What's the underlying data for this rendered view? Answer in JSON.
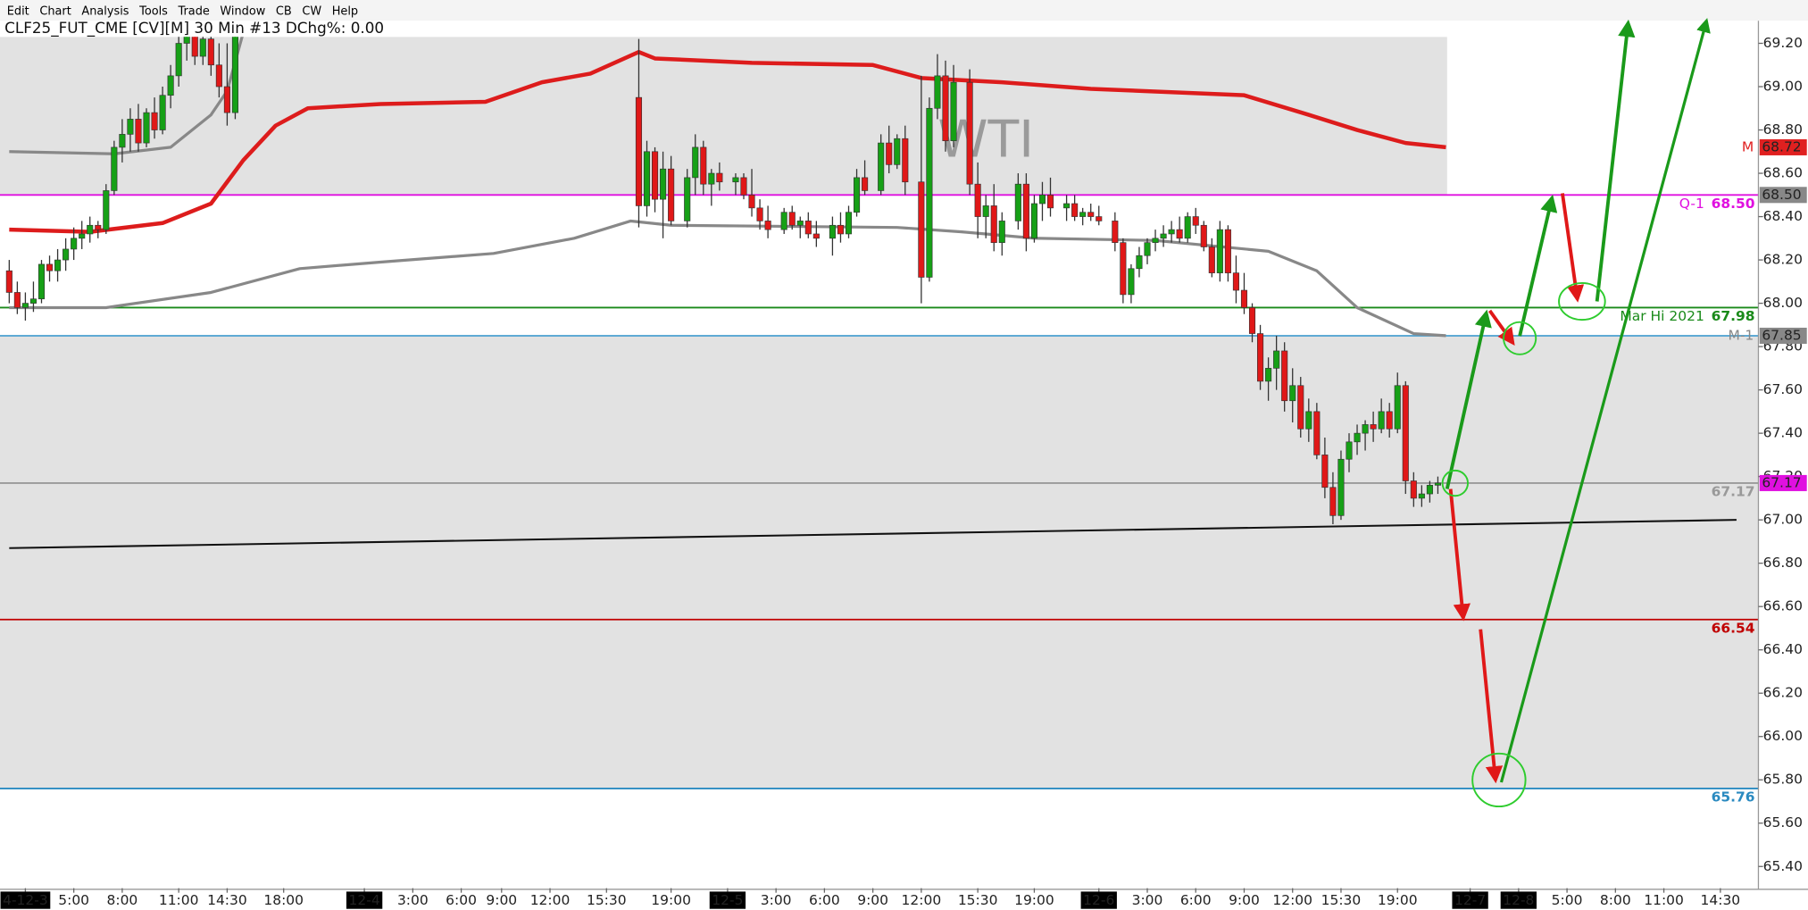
{
  "menu": [
    "Edit",
    "Chart",
    "Analysis",
    "Tools",
    "Trade",
    "Window",
    "CB",
    "CW",
    "Help"
  ],
  "chart_data": {
    "type": "candlestick",
    "title": "CLF25_FUT_CME [CV][M]  30 Min  #13 DChg%: 0.00",
    "watermark": "WTI",
    "up_color": "#16a016",
    "down_color": "#e01818",
    "xlim": [
      0,
      216
    ],
    "ylim": [
      65.3,
      69.23
    ],
    "yticks": [
      {
        "value": 65.4,
        "label": "65.40"
      },
      {
        "value": 65.6,
        "label": "65.60"
      },
      {
        "value": 65.8,
        "label": "65.80"
      },
      {
        "value": 66.0,
        "label": "66.00"
      },
      {
        "value": 66.2,
        "label": "66.20"
      },
      {
        "value": 66.4,
        "label": "66.40"
      },
      {
        "value": 66.6,
        "label": "66.60"
      },
      {
        "value": 66.8,
        "label": "66.80"
      },
      {
        "value": 67.0,
        "label": "67.00"
      },
      {
        "value": 67.2,
        "label": "67.20"
      },
      {
        "value": 67.4,
        "label": "67.40"
      },
      {
        "value": 67.6,
        "label": "67.60"
      },
      {
        "value": 67.8,
        "label": "67.80"
      },
      {
        "value": 68.0,
        "label": "68.00"
      },
      {
        "value": 68.2,
        "label": "68.20"
      },
      {
        "value": 68.4,
        "label": "68.40"
      },
      {
        "value": 68.6,
        "label": "68.60"
      },
      {
        "value": 68.8,
        "label": "68.80"
      },
      {
        "value": 69.0,
        "label": "69.00"
      },
      {
        "value": 69.2,
        "label": "69.20"
      }
    ],
    "xticks": [
      {
        "value": 2,
        "label": "4-12-3",
        "date": true
      },
      {
        "value": 8,
        "label": "5:00"
      },
      {
        "value": 14,
        "label": "8:00"
      },
      {
        "value": 21,
        "label": "11:00"
      },
      {
        "value": 27,
        "label": "14:30"
      },
      {
        "value": 34,
        "label": "18:00"
      },
      {
        "value": 44,
        "label": "12-4",
        "date": true
      },
      {
        "value": 50,
        "label": "3:00"
      },
      {
        "value": 56,
        "label": "6:00"
      },
      {
        "value": 61,
        "label": "9:00"
      },
      {
        "value": 67,
        "label": "12:00"
      },
      {
        "value": 74,
        "label": "15:30"
      },
      {
        "value": 82,
        "label": "19:00"
      },
      {
        "value": 89,
        "label": "12-5",
        "date": true
      },
      {
        "value": 95,
        "label": "3:00"
      },
      {
        "value": 101,
        "label": "6:00"
      },
      {
        "value": 107,
        "label": "9:00"
      },
      {
        "value": 113,
        "label": "12:00"
      },
      {
        "value": 120,
        "label": "15:30"
      },
      {
        "value": 127,
        "label": "19:00"
      },
      {
        "value": 135,
        "label": "12-6",
        "date": true
      },
      {
        "value": 141,
        "label": "3:00"
      },
      {
        "value": 147,
        "label": "6:00"
      },
      {
        "value": 153,
        "label": "9:00"
      },
      {
        "value": 159,
        "label": "12:00"
      },
      {
        "value": 165,
        "label": "15:30"
      },
      {
        "value": 172,
        "label": "19:00"
      },
      {
        "value": 181,
        "label": "12-7",
        "date": true
      },
      {
        "value": 187,
        "label": "12-8",
        "date": true
      },
      {
        "value": 193,
        "label": "5:00"
      },
      {
        "value": 199,
        "label": "8:00"
      },
      {
        "value": 205,
        "label": "11:00"
      },
      {
        "value": 212,
        "label": "14:30"
      }
    ],
    "x": [
      0,
      1,
      2,
      3,
      4,
      5,
      6,
      7,
      8,
      9,
      10,
      11,
      12,
      13,
      14,
      15,
      16,
      17,
      18,
      19,
      20,
      21,
      22,
      23,
      24,
      25,
      26,
      27,
      28,
      78,
      79,
      80,
      81,
      82,
      84,
      85,
      86,
      87,
      88,
      90,
      91,
      92,
      93,
      94,
      96,
      97,
      98,
      99,
      100,
      102,
      103,
      104,
      105,
      106,
      108,
      109,
      110,
      111,
      113,
      114,
      115,
      116,
      117,
      119,
      120,
      121,
      122,
      123,
      125,
      126,
      127,
      128,
      129,
      131,
      132,
      133,
      134,
      135,
      137,
      138,
      139,
      140,
      141,
      142,
      143,
      144,
      145,
      146,
      147,
      148,
      149,
      150,
      151,
      152,
      153,
      154,
      155,
      156,
      157,
      158,
      159,
      160,
      161,
      162,
      163,
      164,
      165,
      166,
      167,
      168,
      169,
      170,
      171,
      172,
      173,
      174,
      175,
      176,
      177
    ],
    "open": [
      68.15,
      68.05,
      67.98,
      68.0,
      68.02,
      68.18,
      68.15,
      68.2,
      68.25,
      68.3,
      68.32,
      68.36,
      68.34,
      68.52,
      68.72,
      68.78,
      68.85,
      68.74,
      68.88,
      68.8,
      68.96,
      69.05,
      69.2,
      69.26,
      69.14,
      69.22,
      69.1,
      69.0,
      68.88,
      68.95,
      68.45,
      68.7,
      68.48,
      68.62,
      68.38,
      68.58,
      68.72,
      68.55,
      68.6,
      68.56,
      68.58,
      68.5,
      68.44,
      68.38,
      68.34,
      68.42,
      68.36,
      68.38,
      68.32,
      68.3,
      68.36,
      68.32,
      68.42,
      68.58,
      68.52,
      68.74,
      68.64,
      68.76,
      68.56,
      68.12,
      68.9,
      69.05,
      68.75,
      69.02,
      68.55,
      68.4,
      68.45,
      68.28,
      68.38,
      68.55,
      68.3,
      68.46,
      68.5,
      68.44,
      68.46,
      68.4,
      68.42,
      68.4,
      68.38,
      68.28,
      68.04,
      68.16,
      68.22,
      68.28,
      68.3,
      68.32,
      68.34,
      68.3,
      68.4,
      68.36,
      68.26,
      68.14,
      68.34,
      68.14,
      68.06,
      67.98,
      67.86,
      67.64,
      67.7,
      67.78,
      67.55,
      67.62,
      67.42,
      67.5,
      67.3,
      67.15,
      67.02,
      67.28,
      67.36,
      67.4,
      67.44,
      67.42,
      67.5,
      67.42,
      67.62,
      67.18,
      67.1,
      67.12,
      67.16
    ],
    "high": [
      68.2,
      68.1,
      68.05,
      68.1,
      68.2,
      68.22,
      68.25,
      68.3,
      68.35,
      68.38,
      68.4,
      68.38,
      68.55,
      68.75,
      68.85,
      68.9,
      68.92,
      68.9,
      68.95,
      69.0,
      69.1,
      69.25,
      69.3,
      69.3,
      69.3,
      69.3,
      69.2,
      69.2,
      69.3,
      69.22,
      68.75,
      68.72,
      68.7,
      68.68,
      68.62,
      68.78,
      68.75,
      68.62,
      68.65,
      68.6,
      68.6,
      68.62,
      68.48,
      68.45,
      68.44,
      68.45,
      68.4,
      68.42,
      68.38,
      68.4,
      68.42,
      68.45,
      68.62,
      68.66,
      68.78,
      68.82,
      68.78,
      68.82,
      69.05,
      68.95,
      69.15,
      69.12,
      69.1,
      69.08,
      68.65,
      68.5,
      68.55,
      68.42,
      68.6,
      68.6,
      68.5,
      68.56,
      68.58,
      68.5,
      68.5,
      68.44,
      68.46,
      68.45,
      68.42,
      68.3,
      68.18,
      68.26,
      68.3,
      68.34,
      68.36,
      68.38,
      68.4,
      68.42,
      68.44,
      68.38,
      68.3,
      68.38,
      68.36,
      68.22,
      68.14,
      68.0,
      67.9,
      67.75,
      67.85,
      67.82,
      67.7,
      67.66,
      67.56,
      67.54,
      67.38,
      67.22,
      67.32,
      67.4,
      67.44,
      67.46,
      67.5,
      67.56,
      67.54,
      67.68,
      67.64,
      67.22,
      67.16,
      67.18,
      67.2
    ],
    "low": [
      68.0,
      67.95,
      67.92,
      67.96,
      68.0,
      68.1,
      68.1,
      68.15,
      68.2,
      68.25,
      68.28,
      68.3,
      68.32,
      68.5,
      68.65,
      68.7,
      68.7,
      68.72,
      68.76,
      68.78,
      68.9,
      69.0,
      69.12,
      69.1,
      69.1,
      69.05,
      68.95,
      68.82,
      68.85,
      68.35,
      68.4,
      68.42,
      68.3,
      68.36,
      68.35,
      68.5,
      68.5,
      68.45,
      68.52,
      68.5,
      68.48,
      68.4,
      68.34,
      68.3,
      68.32,
      68.34,
      68.3,
      68.3,
      68.26,
      68.22,
      68.28,
      68.3,
      68.4,
      68.5,
      68.5,
      68.6,
      68.62,
      68.5,
      68.0,
      68.1,
      68.85,
      68.7,
      68.72,
      68.5,
      68.3,
      68.3,
      68.24,
      68.22,
      68.34,
      68.24,
      68.28,
      68.38,
      68.4,
      68.38,
      68.38,
      68.36,
      68.38,
      68.36,
      68.24,
      68.0,
      68.0,
      68.12,
      68.18,
      68.24,
      68.26,
      68.28,
      68.28,
      68.28,
      68.32,
      68.24,
      68.12,
      68.1,
      68.1,
      68.0,
      67.95,
      67.82,
      67.6,
      67.55,
      67.6,
      67.5,
      67.45,
      67.38,
      67.36,
      67.28,
      67.1,
      66.98,
      67.0,
      67.22,
      67.3,
      67.32,
      67.36,
      67.4,
      67.38,
      67.4,
      67.12,
      67.06,
      67.06,
      67.08,
      67.12
    ],
    "close": [
      68.05,
      67.98,
      68.0,
      68.02,
      68.18,
      68.15,
      68.2,
      68.25,
      68.3,
      68.32,
      68.36,
      68.34,
      68.52,
      68.72,
      68.78,
      68.85,
      68.74,
      68.88,
      68.8,
      68.96,
      69.05,
      69.2,
      69.26,
      69.14,
      69.22,
      69.1,
      69.0,
      68.88,
      69.25,
      68.45,
      68.7,
      68.48,
      68.62,
      68.38,
      68.58,
      68.72,
      68.55,
      68.6,
      68.56,
      68.58,
      68.5,
      68.44,
      68.38,
      68.34,
      68.42,
      68.36,
      68.38,
      68.32,
      68.3,
      68.36,
      68.32,
      68.42,
      68.58,
      68.52,
      68.74,
      68.64,
      68.76,
      68.56,
      68.12,
      68.9,
      69.05,
      68.75,
      69.02,
      68.55,
      68.4,
      68.45,
      68.28,
      68.38,
      68.55,
      68.3,
      68.46,
      68.5,
      68.44,
      68.46,
      68.4,
      68.42,
      68.4,
      68.38,
      68.28,
      68.04,
      68.16,
      68.22,
      68.28,
      68.3,
      68.32,
      68.34,
      68.3,
      68.4,
      68.36,
      68.26,
      68.14,
      68.34,
      68.14,
      68.06,
      67.98,
      67.86,
      67.64,
      67.7,
      67.78,
      67.55,
      67.62,
      67.42,
      67.5,
      67.3,
      67.15,
      67.02,
      67.28,
      67.36,
      67.4,
      67.44,
      67.42,
      67.5,
      67.42,
      67.62,
      67.18,
      67.1,
      67.12,
      67.16,
      67.17
    ],
    "zones": [
      {
        "low": 68.5,
        "high": 69.23,
        "color": "#e2e2e2"
      },
      {
        "low": 65.76,
        "high": 67.85,
        "color": "#e2e2e2"
      }
    ],
    "lines": [
      {
        "color": "#dd1c1c",
        "width": 3.5,
        "x": [
          0,
          10,
          19,
          25,
          29,
          33,
          37,
          46,
          59,
          66,
          72,
          78,
          80,
          92,
          107,
          113,
          123,
          134,
          153,
          161,
          167,
          173,
          178
        ],
        "values": [
          68.34,
          68.33,
          68.37,
          68.46,
          68.66,
          68.82,
          68.9,
          68.92,
          68.93,
          69.02,
          69.06,
          69.16,
          69.13,
          69.11,
          69.1,
          69.04,
          69.02,
          68.99,
          68.96,
          68.87,
          68.8,
          68.74,
          68.72
        ]
      },
      {
        "color": "#888888",
        "width": 2.5,
        "x": [
          0,
          13,
          20,
          25,
          27,
          29
        ],
        "values": [
          68.7,
          68.69,
          68.72,
          68.87,
          68.98,
          69.25
        ]
      },
      {
        "color": "#888888",
        "width": 2.5,
        "x": [
          0,
          12,
          25,
          36,
          46,
          60,
          70,
          77,
          82,
          110,
          118,
          127,
          142,
          156,
          162,
          167,
          174,
          178
        ],
        "values": [
          67.98,
          67.98,
          68.05,
          68.16,
          68.19,
          68.23,
          68.3,
          68.38,
          68.36,
          68.35,
          68.33,
          68.3,
          68.29,
          68.24,
          68.15,
          67.98,
          67.86,
          67.85
        ]
      },
      {
        "color": "#111111",
        "width": 1.6,
        "x": [
          0,
          214
        ],
        "values": [
          66.87,
          67.0
        ]
      }
    ],
    "levels": [
      {
        "name": "Q-1",
        "value": 68.5,
        "value_label": "68.50",
        "color": "#e010e0"
      },
      {
        "name": "Mar Hi 2021",
        "value": 67.98,
        "value_label": "67.98",
        "color": "#1a8a1a"
      },
      {
        "value": 67.85,
        "color": "#4aa0d0"
      },
      {
        "value": 67.17,
        "value_label": "67.17",
        "color": "#999999"
      },
      {
        "value": 66.54,
        "value_label": "66.54",
        "color": "#c00000"
      },
      {
        "value": 65.76,
        "value_label": "65.76",
        "color": "#2a8ac0"
      }
    ],
    "axis_tags": [
      {
        "name": "M",
        "value": 68.72,
        "value_label": "68.72",
        "color": "#e02020"
      },
      {
        "value": 68.5,
        "value_label": "68.50",
        "color": "#888888"
      },
      {
        "name": "M-1",
        "value": 67.85,
        "value_label": "67.85",
        "color": "#888888"
      },
      {
        "value": 67.17,
        "value_label": "67.17",
        "color": "#e010e0"
      }
    ]
  }
}
